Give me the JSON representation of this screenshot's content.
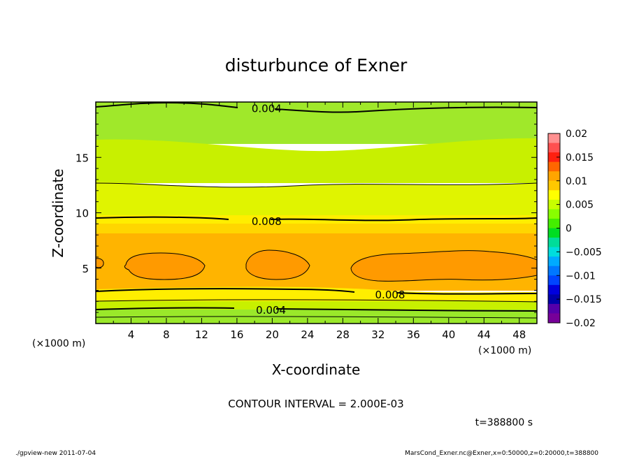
{
  "chart_data": {
    "type": "heatmap",
    "title": "disturbunce of Exner",
    "xlabel": "X-coordinate",
    "ylabel": "Z-coordinate",
    "x_unit": "(×1000 m)",
    "y_unit": "(×1000 m)",
    "xlim": [
      0,
      50
    ],
    "ylim": [
      0,
      20
    ],
    "x_ticks": [
      4,
      8,
      12,
      16,
      20,
      24,
      28,
      32,
      36,
      40,
      44,
      48
    ],
    "y_ticks": [
      5,
      10,
      15
    ],
    "contour_interval_text": "CONTOUR INTERVAL = 2.000E-03",
    "contour_labels": [
      {
        "text": "0.004",
        "x": 17.5,
        "z": 19.4
      },
      {
        "text": "0.008",
        "x": 17.5,
        "z": 9.2
      },
      {
        "text": "0.008",
        "x": 31.5,
        "z": 2.6
      },
      {
        "text": "0.004",
        "x": 18.0,
        "z": 1.2
      }
    ],
    "colorbar": {
      "labels": [
        "0.02",
        "0.015",
        "0.01",
        "0.005",
        "0",
        "−0.005",
        "−0.01",
        "−0.015",
        "−0.02"
      ],
      "colors": [
        "#ff9090",
        "#ff5050",
        "#ff2010",
        "#ff6600",
        "#ffa500",
        "#ffc800",
        "#ffff00",
        "#c8ff00",
        "#88ff00",
        "#44ee00",
        "#00dd22",
        "#00dd99",
        "#00dddd",
        "#00aaff",
        "#0077ff",
        "#0044ff",
        "#0000dd",
        "#0000aa",
        "#5500aa",
        "#770099"
      ]
    },
    "time_text": "t=388800 s"
  },
  "footer": {
    "left": "./gpview-new  2011-07-04",
    "right": "MarsCond_Exner.nc@Exner,x=0:50000,z=0:20000,t=388800"
  }
}
